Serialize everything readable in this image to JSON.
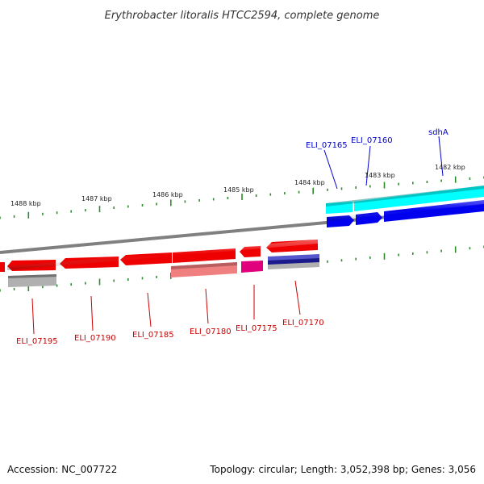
{
  "title": "Erythrobacter litoralis HTCC2594, complete genome",
  "footer": {
    "accession": "Accession: NC_007722",
    "summary": "Topology: circular; Length: 3,052,398 bp; Genes: 3,056"
  },
  "colors": {
    "backbone": "#808080",
    "tick": "#2e8b2e",
    "forward_gene": "#0000ee",
    "forward_feature": "#00ffff",
    "reverse_gene": "#ee0000",
    "reverse_feature_light": "#f08080",
    "reverse_feature_pink": "#e0007e",
    "reverse_feature_grey": "#b0b0b0",
    "reverse_feature_navy": "#1a1a8a",
    "label_forward": "#0000cc",
    "label_reverse": "#cc0000"
  },
  "scale_labels": [
    "1488 kbp",
    "1487 kbp",
    "1486 kbp",
    "1485 kbp",
    "1484 kbp",
    "1483 kbp",
    "1482 kbp"
  ],
  "forward_labels": [
    "ELI_07165",
    "ELI_07160",
    "sdhA"
  ],
  "reverse_labels": [
    "ELI_07195",
    "ELI_07190",
    "ELI_07185",
    "ELI_07180",
    "ELI_07175",
    "ELI_07170"
  ]
}
